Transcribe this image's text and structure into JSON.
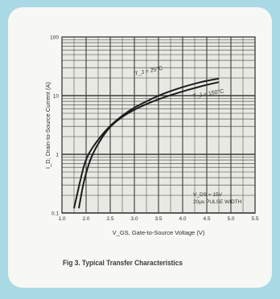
{
  "caption": "Fig 3.  Typical Transfer Characteristics",
  "colors": {
    "background": "#a9d9e5",
    "card": "#f7f7f4",
    "plot_area": "#e9e9e3",
    "grid": "#3a3a3a",
    "curve": "#1c1c1c"
  },
  "chart_data": {
    "type": "line",
    "title": "",
    "xlabel": "V_GS, Gate-to-Source Voltage (V)",
    "ylabel": "I_D, Drain-to-Source Current (A)",
    "xlim": [
      1.0,
      5.5
    ],
    "ylim": [
      0.1,
      100
    ],
    "yscale": "log",
    "grid": true,
    "x_ticks": [
      "1.0",
      "2.0",
      "2.5",
      "3.0",
      "3.5",
      "4.0",
      "4.5",
      "5.0",
      "5.5"
    ],
    "y_ticks": [
      "0.1",
      "1",
      "10",
      "100"
    ],
    "series": [
      {
        "name": "T_J = 25°C",
        "x": [
          1.5,
          1.75,
          2.0,
          2.25,
          2.5,
          2.75,
          3.0,
          3.25,
          3.5,
          3.75,
          4.0,
          4.25,
          4.5,
          4.75
        ],
        "y": [
          0.12,
          0.35,
          0.9,
          1.8,
          3.1,
          4.6,
          6.3,
          8.0,
          10.0,
          12.0,
          14.0,
          16.0,
          18.0,
          19.5
        ]
      },
      {
        "name": "T_J = 150°C",
        "x": [
          1.7,
          1.9,
          2.1,
          2.3,
          2.5,
          2.75,
          3.0,
          3.25,
          3.5,
          3.75,
          4.0,
          4.25,
          4.5,
          4.75
        ],
        "y": [
          0.12,
          0.35,
          0.9,
          1.8,
          3.0,
          4.4,
          5.8,
          7.2,
          8.7,
          10.2,
          11.8,
          13.5,
          15.3,
          17.0
        ]
      }
    ],
    "annotations": [
      "T_J = 25°C",
      "T_J = 150°C",
      "V_DS = 15V",
      "20µs PULSE WIDTH"
    ]
  }
}
